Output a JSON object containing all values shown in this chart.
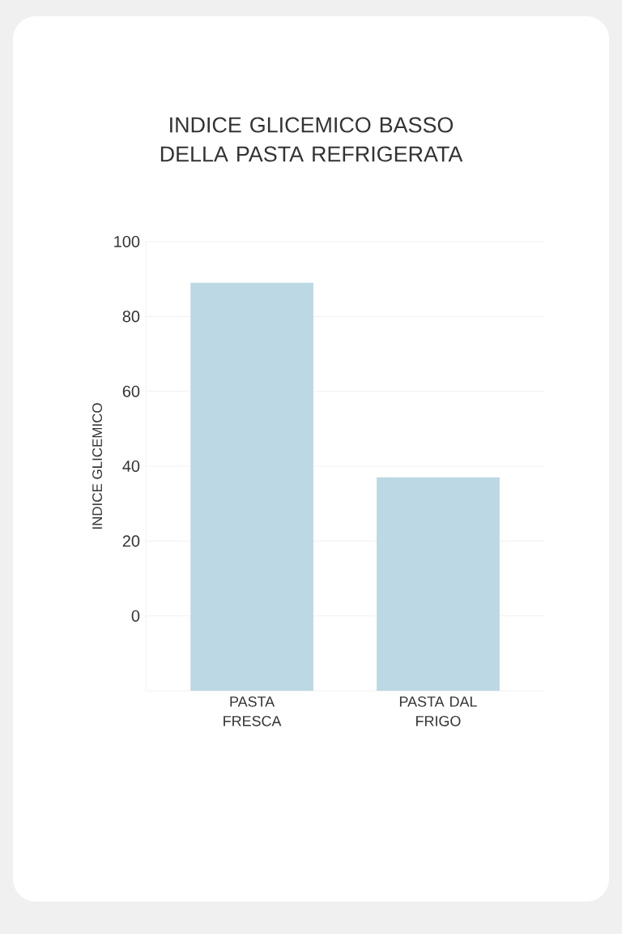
{
  "chart_data": {
    "type": "bar",
    "title": "INDICE GLICEMICO BASSO DELLA PASTA REFRIGERATA",
    "ylabel": "INDICE GLICEMICO",
    "categories": [
      "PASTA FRESCA",
      "PASTA DAL FRIGO"
    ],
    "base": [
      -20,
      -20
    ],
    "values": [
      109,
      57
    ],
    "color": "#bcd8e5",
    "ylim": [
      -20,
      100
    ],
    "yticks": [
      0,
      20,
      40,
      60,
      80,
      100
    ],
    "grid": "y"
  }
}
